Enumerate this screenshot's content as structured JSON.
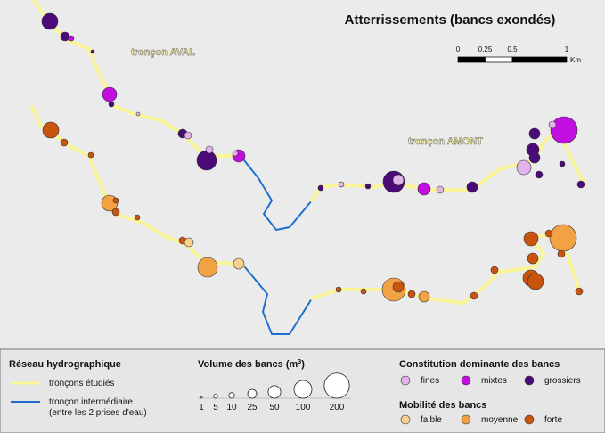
{
  "title": "Atterrissements (bancs exondés)",
  "scale": {
    "ticks": [
      0,
      0.25,
      0.5,
      1
    ],
    "unit": "Km"
  },
  "labels": {
    "aval": "tronçon AVAL",
    "amont": "tronçon AMONT"
  },
  "legend": {
    "network": {
      "title": "Réseau hydrographique",
      "studied": "tronçons étudiés",
      "intermediate": "tronçon intermédiaire",
      "intermediate_note": "(entre les 2 prises d'eau)"
    },
    "volume": {
      "title": "Volume des bancs (m",
      "title_sup": "3",
      "title_end": ")",
      "sizes": [
        1,
        5,
        10,
        25,
        50,
        100,
        200
      ]
    },
    "constitution": {
      "title": "Constitution dominante des bancs",
      "items": [
        "fines",
        "mixtes",
        "grossiers"
      ]
    },
    "mobility": {
      "title": "Mobilité des bancs",
      "items": [
        "faible",
        "moyenne",
        "forte"
      ]
    }
  }
}
